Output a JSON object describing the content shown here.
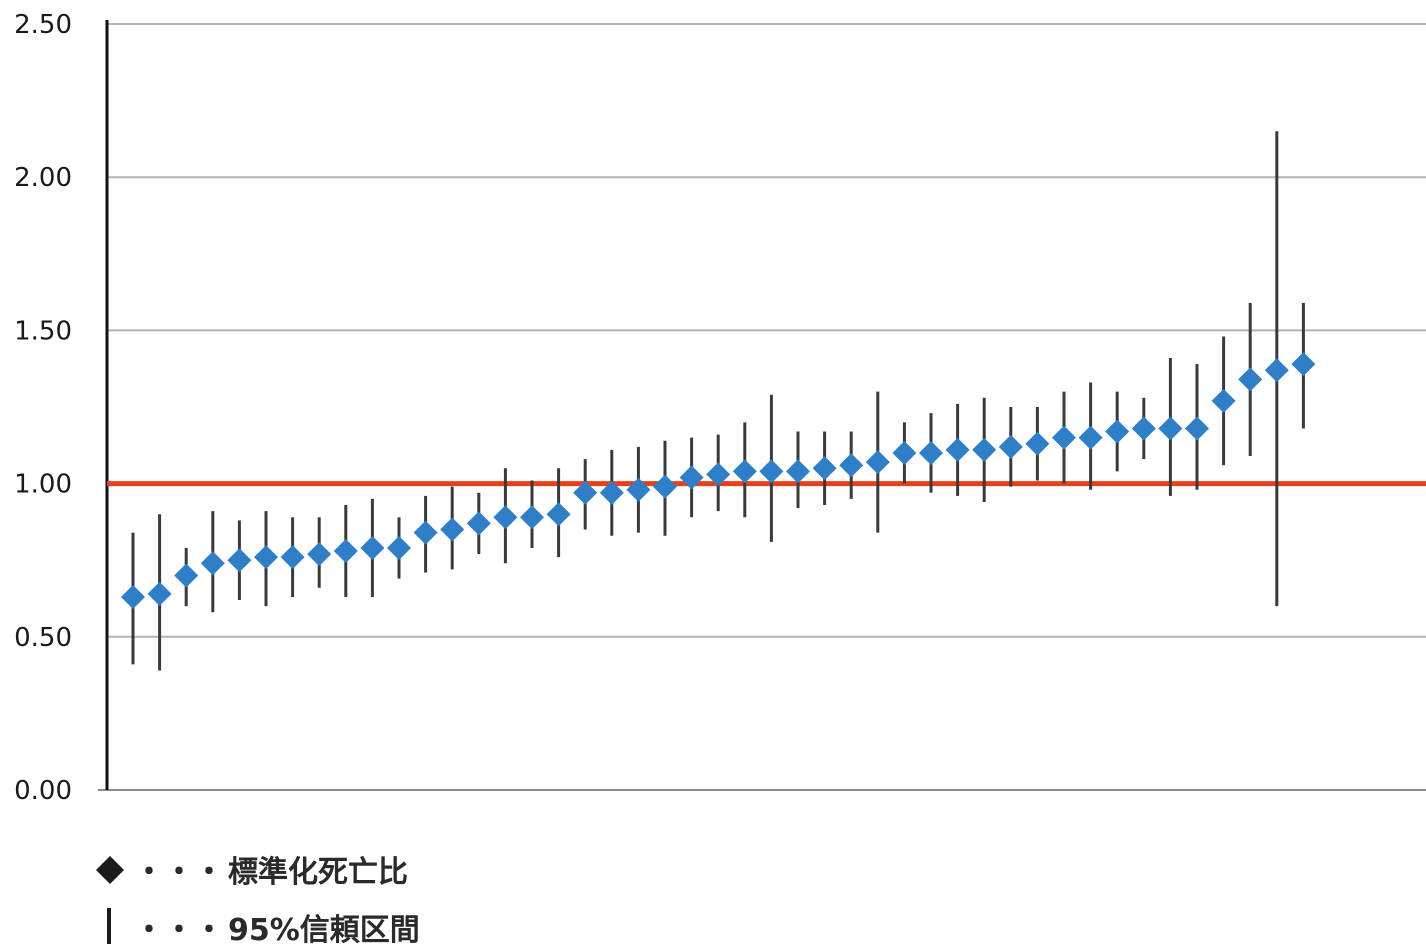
{
  "chart_data": {
    "type": "scatter",
    "title": "",
    "xlabel": "",
    "ylabel": "",
    "ylim": [
      0,
      2.5
    ],
    "y_ticks": [
      "0.00",
      "0.50",
      "1.00",
      "1.50",
      "2.00",
      "2.50"
    ],
    "grid": true,
    "reference_line": {
      "y": 1.0,
      "color": "#e8401c"
    },
    "point_color": "#2f7fc8",
    "error_bar_color": "#3a3a3a",
    "series": [
      {
        "name": "標準化死亡比",
        "points": [
          {
            "x": 1,
            "y": 0.63,
            "lo": 0.41,
            "hi": 0.84
          },
          {
            "x": 2,
            "y": 0.64,
            "lo": 0.39,
            "hi": 0.9
          },
          {
            "x": 3,
            "y": 0.7,
            "lo": 0.6,
            "hi": 0.79
          },
          {
            "x": 4,
            "y": 0.74,
            "lo": 0.58,
            "hi": 0.91
          },
          {
            "x": 5,
            "y": 0.75,
            "lo": 0.62,
            "hi": 0.88
          },
          {
            "x": 6,
            "y": 0.76,
            "lo": 0.6,
            "hi": 0.91
          },
          {
            "x": 7,
            "y": 0.76,
            "lo": 0.63,
            "hi": 0.89
          },
          {
            "x": 8,
            "y": 0.77,
            "lo": 0.66,
            "hi": 0.89
          },
          {
            "x": 9,
            "y": 0.78,
            "lo": 0.63,
            "hi": 0.93
          },
          {
            "x": 10,
            "y": 0.79,
            "lo": 0.63,
            "hi": 0.95
          },
          {
            "x": 11,
            "y": 0.79,
            "lo": 0.69,
            "hi": 0.89
          },
          {
            "x": 12,
            "y": 0.84,
            "lo": 0.71,
            "hi": 0.96
          },
          {
            "x": 13,
            "y": 0.85,
            "lo": 0.72,
            "hi": 0.99
          },
          {
            "x": 14,
            "y": 0.87,
            "lo": 0.77,
            "hi": 0.97
          },
          {
            "x": 15,
            "y": 0.89,
            "lo": 0.74,
            "hi": 1.05
          },
          {
            "x": 16,
            "y": 0.89,
            "lo": 0.79,
            "hi": 1.01
          },
          {
            "x": 17,
            "y": 0.9,
            "lo": 0.76,
            "hi": 1.05
          },
          {
            "x": 18,
            "y": 0.97,
            "lo": 0.85,
            "hi": 1.08
          },
          {
            "x": 19,
            "y": 0.97,
            "lo": 0.83,
            "hi": 1.11
          },
          {
            "x": 20,
            "y": 0.98,
            "lo": 0.84,
            "hi": 1.12
          },
          {
            "x": 21,
            "y": 0.99,
            "lo": 0.83,
            "hi": 1.14
          },
          {
            "x": 22,
            "y": 1.02,
            "lo": 0.89,
            "hi": 1.15
          },
          {
            "x": 23,
            "y": 1.03,
            "lo": 0.91,
            "hi": 1.16
          },
          {
            "x": 24,
            "y": 1.04,
            "lo": 0.89,
            "hi": 1.2
          },
          {
            "x": 25,
            "y": 1.04,
            "lo": 0.81,
            "hi": 1.29
          },
          {
            "x": 26,
            "y": 1.04,
            "lo": 0.92,
            "hi": 1.17
          },
          {
            "x": 27,
            "y": 1.05,
            "lo": 0.93,
            "hi": 1.17
          },
          {
            "x": 28,
            "y": 1.06,
            "lo": 0.95,
            "hi": 1.17
          },
          {
            "x": 29,
            "y": 1.07,
            "lo": 0.84,
            "hi": 1.3
          },
          {
            "x": 30,
            "y": 1.1,
            "lo": 1.0,
            "hi": 1.2
          },
          {
            "x": 31,
            "y": 1.1,
            "lo": 0.97,
            "hi": 1.23
          },
          {
            "x": 32,
            "y": 1.11,
            "lo": 0.96,
            "hi": 1.26
          },
          {
            "x": 33,
            "y": 1.11,
            "lo": 0.94,
            "hi": 1.28
          },
          {
            "x": 34,
            "y": 1.12,
            "lo": 0.99,
            "hi": 1.25
          },
          {
            "x": 35,
            "y": 1.13,
            "lo": 1.01,
            "hi": 1.25
          },
          {
            "x": 36,
            "y": 1.15,
            "lo": 1.0,
            "hi": 1.3
          },
          {
            "x": 37,
            "y": 1.15,
            "lo": 0.98,
            "hi": 1.33
          },
          {
            "x": 38,
            "y": 1.17,
            "lo": 1.04,
            "hi": 1.3
          },
          {
            "x": 39,
            "y": 1.18,
            "lo": 1.08,
            "hi": 1.28
          },
          {
            "x": 40,
            "y": 1.18,
            "lo": 0.96,
            "hi": 1.41
          },
          {
            "x": 41,
            "y": 1.18,
            "lo": 0.98,
            "hi": 1.39
          },
          {
            "x": 42,
            "y": 1.27,
            "lo": 1.06,
            "hi": 1.48
          },
          {
            "x": 43,
            "y": 1.34,
            "lo": 1.09,
            "hi": 1.59
          },
          {
            "x": 44,
            "y": 1.37,
            "lo": 0.6,
            "hi": 2.15
          },
          {
            "x": 45,
            "y": 1.39,
            "lo": 1.18,
            "hi": 1.59
          }
        ]
      }
    ],
    "legend": {
      "placement": "bottom-left",
      "items": [
        {
          "symbol": "diamond",
          "dots": "・・・",
          "label": "標準化死亡比"
        },
        {
          "symbol": "bar",
          "dots": "・・・",
          "label": "95%信頼区間"
        }
      ]
    }
  }
}
